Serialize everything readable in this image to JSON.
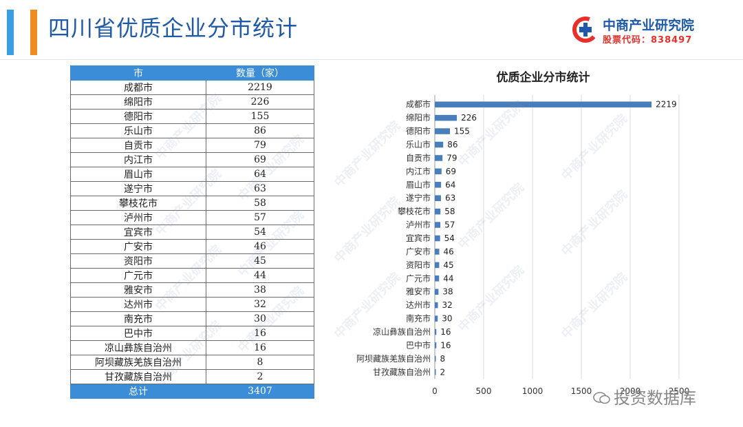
{
  "header": {
    "title": "四川省优质企业分市统计",
    "logo_name": "中商产业研究院",
    "logo_code": "股票代码：838497"
  },
  "table": {
    "col_city": "市",
    "col_count": "数量（家）",
    "rows": [
      {
        "city": "成都市",
        "count": "2219"
      },
      {
        "city": "绵阳市",
        "count": "226"
      },
      {
        "city": "德阳市",
        "count": "155"
      },
      {
        "city": "乐山市",
        "count": "86"
      },
      {
        "city": "自贡市",
        "count": "79"
      },
      {
        "city": "内江市",
        "count": "69"
      },
      {
        "city": "眉山市",
        "count": "64"
      },
      {
        "city": "遂宁市",
        "count": "63"
      },
      {
        "city": "攀枝花市",
        "count": "58"
      },
      {
        "city": "泸州市",
        "count": "57"
      },
      {
        "city": "宜宾市",
        "count": "54"
      },
      {
        "city": "广安市",
        "count": "46"
      },
      {
        "city": "资阳市",
        "count": "45"
      },
      {
        "city": "广元市",
        "count": "44"
      },
      {
        "city": "雅安市",
        "count": "38"
      },
      {
        "city": "达州市",
        "count": "32"
      },
      {
        "city": "南充市",
        "count": "30"
      },
      {
        "city": "巴中市",
        "count": "16"
      },
      {
        "city": "凉山彝族自治州",
        "count": "16"
      },
      {
        "city": "阿坝藏族羌族自治州",
        "count": "8"
      },
      {
        "city": "甘孜藏族自治州",
        "count": "2"
      }
    ],
    "total_label": "总计",
    "total_value": "3407"
  },
  "chart_data": {
    "type": "bar",
    "orientation": "horizontal",
    "title": "优质企业分市统计",
    "categories": [
      "成都市",
      "绵阳市",
      "德阳市",
      "乐山市",
      "自贡市",
      "内江市",
      "眉山市",
      "遂宁市",
      "攀枝花市",
      "泸州市",
      "宜宾市",
      "广安市",
      "资阳市",
      "广元市",
      "雅安市",
      "达州市",
      "南充市",
      "凉山彝族自治州",
      "巴中市",
      "阿坝藏族羌族自治州",
      "甘孜藏族自治州"
    ],
    "values": [
      2219,
      226,
      155,
      86,
      79,
      69,
      64,
      63,
      58,
      57,
      54,
      46,
      45,
      44,
      38,
      32,
      30,
      16,
      16,
      8,
      2
    ],
    "xlim": [
      0,
      2500
    ],
    "xticks": [
      "0",
      "500",
      "1000",
      "1500",
      "2000",
      "2500"
    ],
    "grid": true,
    "legend": "none",
    "bar_color": "#4a7ebb"
  },
  "footer": {
    "wechat_label": "投资数据库"
  },
  "watermark_text": "中商产业研究院"
}
